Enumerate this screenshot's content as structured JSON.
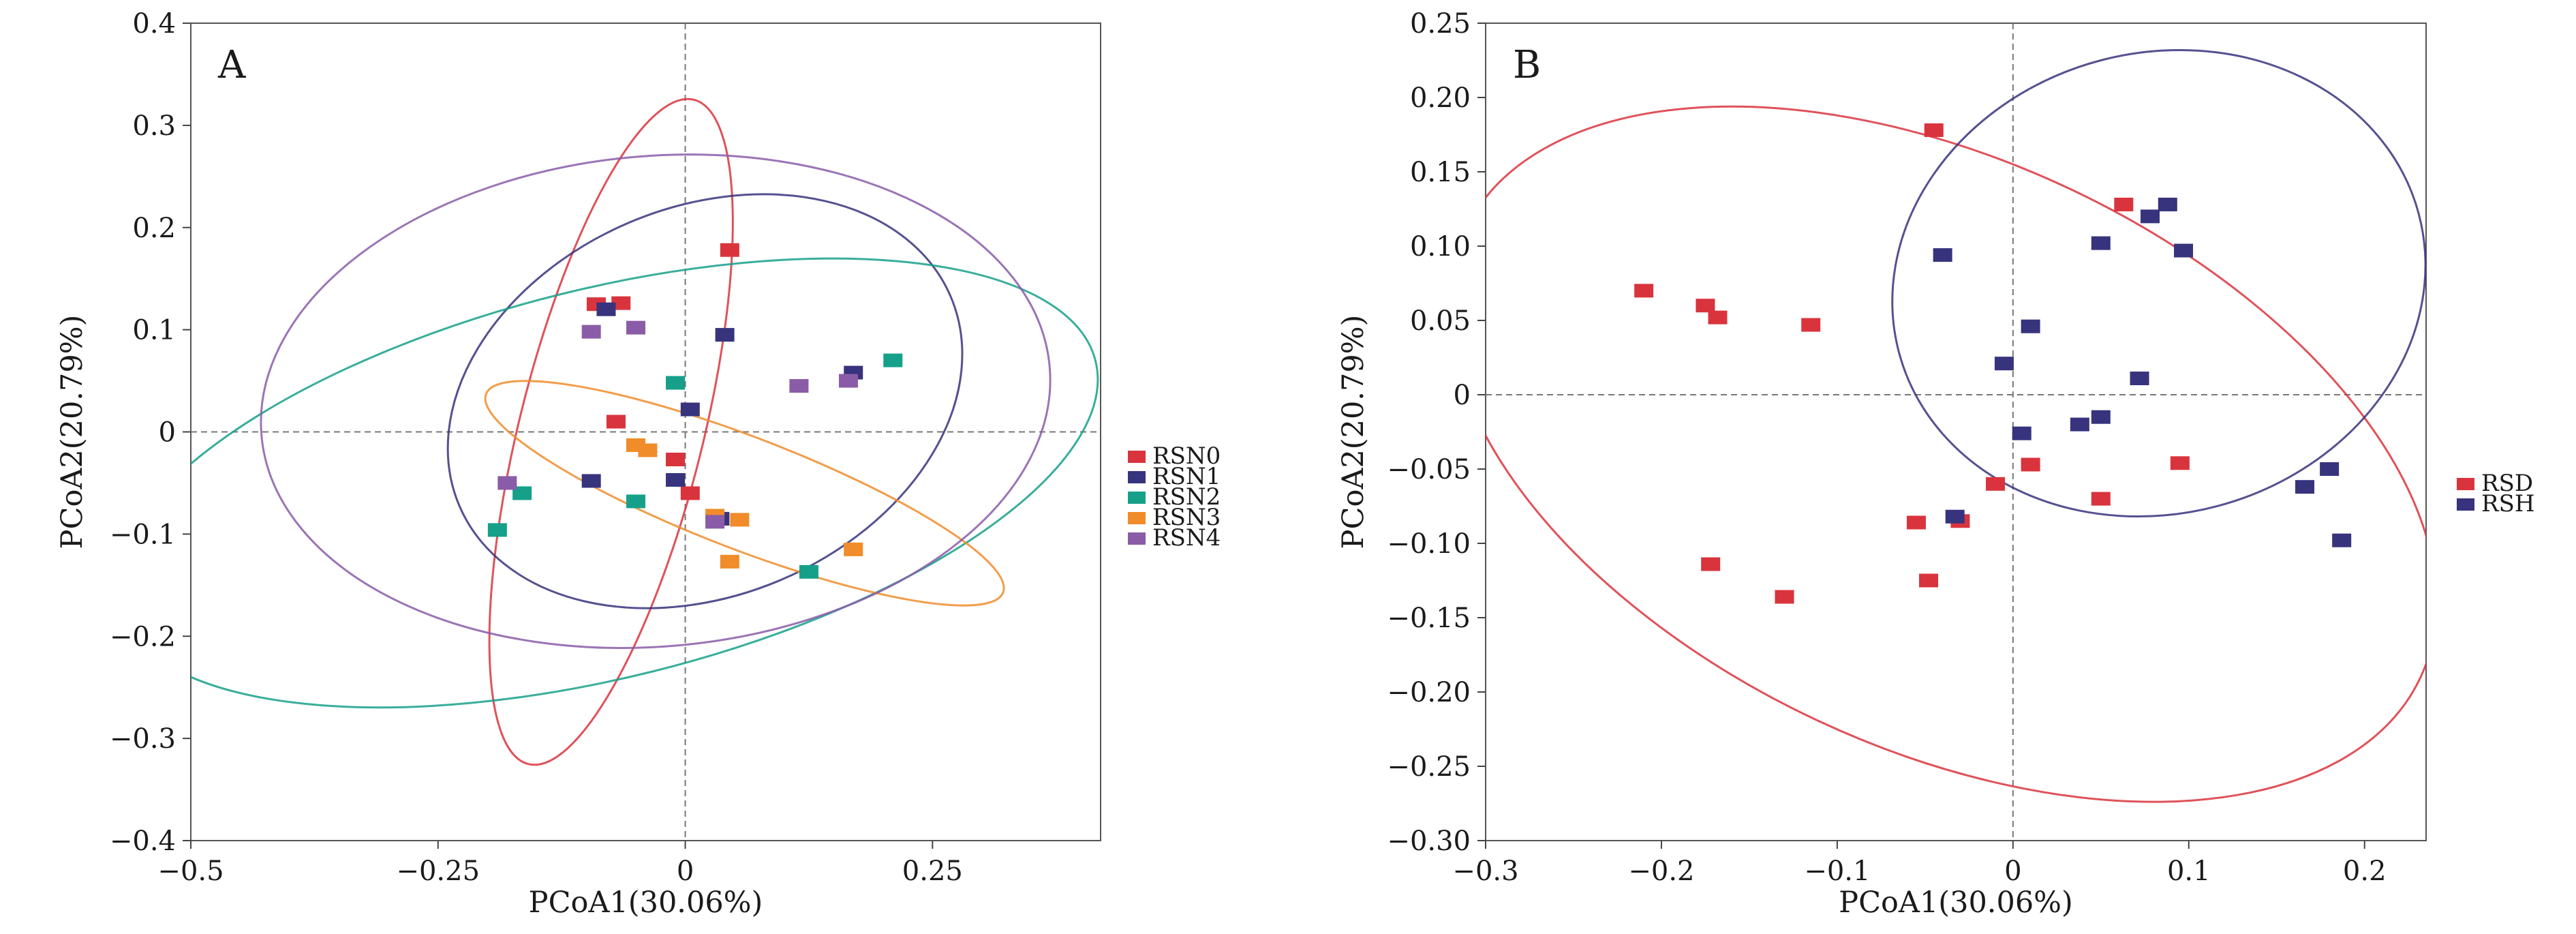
{
  "chart_data": [
    {
      "type": "scatter",
      "panel_label": "A",
      "xlabel": "PCoA1(30.06%)",
      "ylabel": "PCoA2(20.79%)",
      "xlim": [
        -0.5,
        0.42
      ],
      "ylim": [
        -0.4,
        0.4
      ],
      "xticks": [
        -0.5,
        -0.25,
        0,
        0.25
      ],
      "xtick_labels": [
        "−0.5",
        "−0.25",
        "0",
        "0.25"
      ],
      "yticks": [
        -0.4,
        -0.3,
        -0.2,
        -0.1,
        0,
        0.1,
        0.2,
        0.3,
        0.4
      ],
      "ytick_labels": [
        "−0.4",
        "−0.3",
        "−0.2",
        "−0.1",
        "0",
        "0.1",
        "0.2",
        "0.3",
        "0.4"
      ],
      "grid": false,
      "reference_lines": {
        "x": 0,
        "y": 0,
        "style": "dashed"
      },
      "legend_position": "right",
      "series": [
        {
          "name": "RSN0",
          "color": "#d9343d",
          "points": [
            [
              -0.09,
              0.125
            ],
            [
              -0.065,
              0.126
            ],
            [
              0.045,
              0.178
            ],
            [
              -0.07,
              0.01
            ],
            [
              -0.01,
              -0.027
            ],
            [
              0.005,
              -0.06
            ]
          ],
          "ellipse": {
            "cx": -0.075,
            "cy": 0.0,
            "rx": 0.093,
            "ry": 0.335,
            "angle": -14
          }
        },
        {
          "name": "RSN1",
          "color": "#37337d",
          "points": [
            [
              -0.08,
              0.12
            ],
            [
              0.04,
              0.095
            ],
            [
              0.005,
              0.022
            ],
            [
              0.17,
              0.058
            ],
            [
              -0.095,
              -0.048
            ],
            [
              -0.01,
              -0.047
            ],
            [
              0.035,
              -0.085
            ]
          ],
          "ellipse": {
            "cx": 0.02,
            "cy": 0.03,
            "rx": 0.27,
            "ry": 0.19,
            "angle": 23
          }
        },
        {
          "name": "RSN2",
          "color": "#16a08a",
          "points": [
            [
              -0.01,
              0.048
            ],
            [
              0.21,
              0.07
            ],
            [
              -0.165,
              -0.06
            ],
            [
              -0.05,
              -0.068
            ],
            [
              -0.19,
              -0.096
            ],
            [
              0.125,
              -0.137
            ]
          ],
          "ellipse": {
            "cx": -0.08,
            "cy": -0.05,
            "rx": 0.51,
            "ry": 0.19,
            "angle": 14
          }
        },
        {
          "name": "RSN3",
          "color": "#f08c2a",
          "points": [
            [
              -0.05,
              -0.013
            ],
            [
              -0.038,
              -0.018
            ],
            [
              0.03,
              -0.082
            ],
            [
              0.055,
              -0.086
            ],
            [
              0.045,
              -0.127
            ],
            [
              0.17,
              -0.115
            ]
          ],
          "ellipse": {
            "cx": 0.06,
            "cy": -0.06,
            "rx": 0.28,
            "ry": 0.055,
            "angle": -21
          }
        },
        {
          "name": "RSN4",
          "color": "#8a5ca8",
          "points": [
            [
              -0.095,
              0.098
            ],
            [
              -0.05,
              0.102
            ],
            [
              0.115,
              0.045
            ],
            [
              0.165,
              0.05
            ],
            [
              -0.18,
              -0.05
            ],
            [
              0.03,
              -0.088
            ]
          ],
          "ellipse": {
            "cx": -0.03,
            "cy": 0.03,
            "rx": 0.4,
            "ry": 0.24,
            "angle": 5
          }
        }
      ]
    },
    {
      "type": "scatter",
      "panel_label": "B",
      "xlabel": "PCoA1(30.06%)",
      "ylabel": "PCoA2(20.79%)",
      "xlim": [
        -0.3,
        0.235
      ],
      "ylim": [
        -0.3,
        0.25
      ],
      "xticks": [
        -0.3,
        -0.2,
        -0.1,
        0,
        0.1,
        0.2
      ],
      "xtick_labels": [
        "−0.3",
        "−0.2",
        "−0.1",
        "0",
        "0.1",
        "0.2"
      ],
      "yticks": [
        -0.3,
        -0.25,
        -0.2,
        -0.15,
        -0.1,
        -0.05,
        0,
        0.05,
        0.1,
        0.15,
        0.2,
        0.25
      ],
      "ytick_labels": [
        "−0.30",
        "−0.25",
        "−0.20",
        "−0.15",
        "−0.10",
        "−0.05",
        "0",
        "0.05",
        "0.10",
        "0.15",
        "0.20",
        "0.25"
      ],
      "grid": false,
      "reference_lines": {
        "x": 0,
        "y": 0,
        "style": "dashed"
      },
      "legend_position": "right",
      "series": [
        {
          "name": "RSD",
          "color": "#d9343d",
          "points": [
            [
              -0.21,
              0.07
            ],
            [
              -0.175,
              0.06
            ],
            [
              -0.168,
              0.052
            ],
            [
              -0.115,
              0.047
            ],
            [
              -0.045,
              0.178
            ],
            [
              0.063,
              0.128
            ],
            [
              -0.01,
              -0.06
            ],
            [
              0.01,
              -0.047
            ],
            [
              0.095,
              -0.046
            ],
            [
              0.05,
              -0.07
            ],
            [
              -0.055,
              -0.086
            ],
            [
              -0.03,
              -0.085
            ],
            [
              -0.048,
              -0.125
            ],
            [
              -0.172,
              -0.114
            ],
            [
              -0.13,
              -0.136
            ]
          ],
          "ellipse": {
            "cx": -0.04,
            "cy": -0.04,
            "rx": 0.3,
            "ry": 0.198,
            "angle": -25
          }
        },
        {
          "name": "RSH",
          "color": "#37337d",
          "points": [
            [
              -0.04,
              0.094
            ],
            [
              0.088,
              0.128
            ],
            [
              0.078,
              0.12
            ],
            [
              0.05,
              0.102
            ],
            [
              0.097,
              0.097
            ],
            [
              0.01,
              0.046
            ],
            [
              -0.005,
              0.021
            ],
            [
              0.072,
              0.011
            ],
            [
              0.005,
              -0.026
            ],
            [
              0.038,
              -0.02
            ],
            [
              0.05,
              -0.015
            ],
            [
              0.18,
              -0.05
            ],
            [
              0.166,
              -0.062
            ],
            [
              0.187,
              -0.098
            ],
            [
              -0.033,
              -0.082
            ]
          ],
          "ellipse": {
            "cx": 0.083,
            "cy": 0.075,
            "rx": 0.153,
            "ry": 0.155,
            "angle": 15
          }
        }
      ]
    }
  ]
}
